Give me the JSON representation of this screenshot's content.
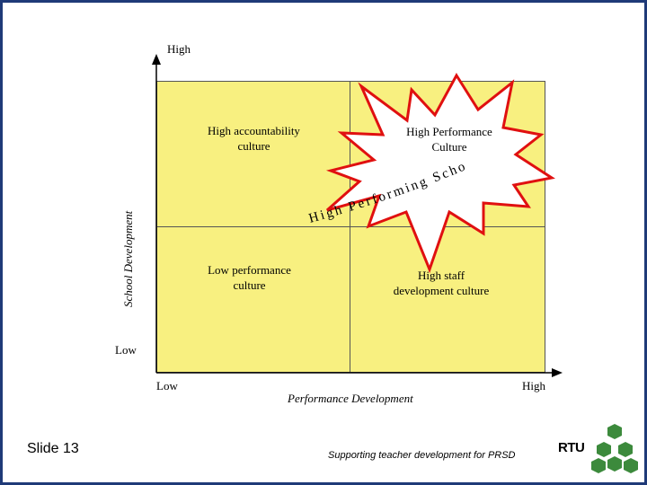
{
  "axes": {
    "y_high": "High",
    "y_low": "Low",
    "y_title": "School Development",
    "x_low": "Low",
    "x_high": "High",
    "x_title": "Performance Development"
  },
  "quadrants": {
    "top_left": {
      "line1": "High accountability",
      "line2": "culture"
    },
    "top_right": {
      "line1": "High Performance",
      "line2": "Culture"
    },
    "bottom_left": {
      "line1": "Low performance",
      "line2": "culture"
    },
    "bottom_right": {
      "line1": "High staff",
      "line2": "development culture"
    }
  },
  "arc_text": "High Performing School",
  "footer": {
    "slide": "Slide 13",
    "subtitle": "Supporting teacher development for PRSD",
    "logo": "RTU"
  },
  "colors": {
    "quadrant_fill": "#f8f080",
    "frame": "#1f3a78",
    "logo_green": "#3c8a3c"
  }
}
